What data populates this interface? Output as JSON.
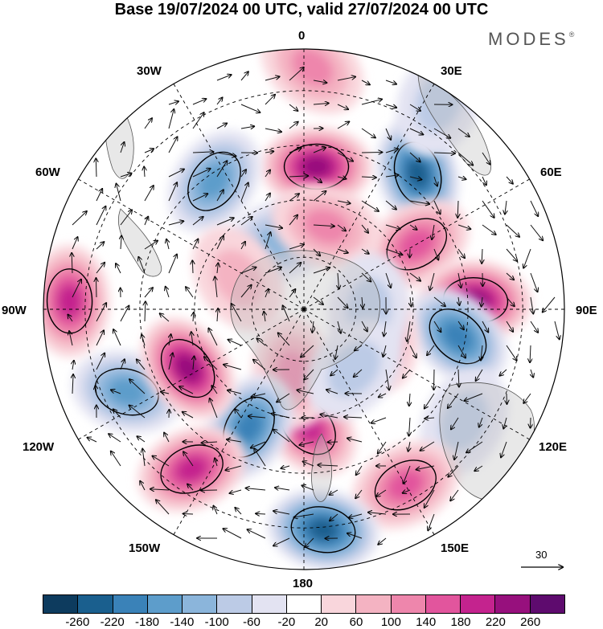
{
  "title": "Base 19/07/2024 00 UTC, valid 27/07/2024 00 UTC",
  "brand": "MODES",
  "brand_mark": "®",
  "longitude_labels": {
    "lon_0": "0",
    "lon_30e": "30E",
    "lon_60e": "60E",
    "lon_90e": "90E",
    "lon_120e": "120E",
    "lon_150e": "150E",
    "lon_180": "180",
    "lon_150w": "150W",
    "lon_120w": "120W",
    "lon_90w": "90W",
    "lon_60w": "60W",
    "lon_30w": "30W"
  },
  "reference_vector": {
    "label": "30"
  },
  "colorbar": {
    "colors": [
      "#0d3b5e",
      "#1a5f8e",
      "#3a82b8",
      "#5d9dcb",
      "#8bb5db",
      "#bccbe6",
      "#e3e3f2",
      "#ffffff",
      "#f9d6dc",
      "#f4b3c2",
      "#ee86ac",
      "#e2559d",
      "#c4238e",
      "#97107d",
      "#5e0b6e"
    ],
    "ticks": [
      "-260",
      "-220",
      "-180",
      "-140",
      "-100",
      "-60",
      "-20",
      "20",
      "60",
      "100",
      "140",
      "180",
      "220",
      "260"
    ]
  },
  "map": {
    "projection": "south-polar-stereographic",
    "graticule": "dashed",
    "anomalies": [
      {
        "lon": 5,
        "r": 0.55,
        "value": 240
      },
      {
        "lon": 2,
        "r": 0.93,
        "value": 120
      },
      {
        "lon": 40,
        "r": 0.68,
        "value": -230
      },
      {
        "lon": 33,
        "r": 0.95,
        "value": -70
      },
      {
        "lon": 60,
        "r": 0.5,
        "value": 150
      },
      {
        "lon": 87,
        "r": 0.66,
        "value": 220
      },
      {
        "lon": 100,
        "r": 0.6,
        "value": -170
      },
      {
        "lon": 110,
        "r": 0.3,
        "value": 110
      },
      {
        "lon": 125,
        "r": 0.75,
        "value": -60
      },
      {
        "lon": 150,
        "r": 0.78,
        "value": 150
      },
      {
        "lon": 175,
        "r": 0.85,
        "value": -220
      },
      {
        "lon": 178,
        "r": 0.45,
        "value": 180
      },
      {
        "lon": -170,
        "r": 0.25,
        "value": 100
      },
      {
        "lon": -155,
        "r": 0.5,
        "value": -170
      },
      {
        "lon": -145,
        "r": 0.75,
        "value": 180
      },
      {
        "lon": -115,
        "r": 0.75,
        "value": -140
      },
      {
        "lon": -117,
        "r": 0.5,
        "value": 220
      },
      {
        "lon": -88,
        "r": 0.9,
        "value": 200
      },
      {
        "lon": -35,
        "r": 0.6,
        "value": -160
      },
      {
        "lon": -20,
        "r": 0.28,
        "value": -100
      },
      {
        "lon": 15,
        "r": 0.33,
        "value": 90
      },
      {
        "lon": -65,
        "r": 0.28,
        "value": 60
      },
      {
        "lon": 90,
        "r": 0.25,
        "value": -60
      },
      {
        "lon": 140,
        "r": 0.3,
        "value": -50
      }
    ]
  }
}
